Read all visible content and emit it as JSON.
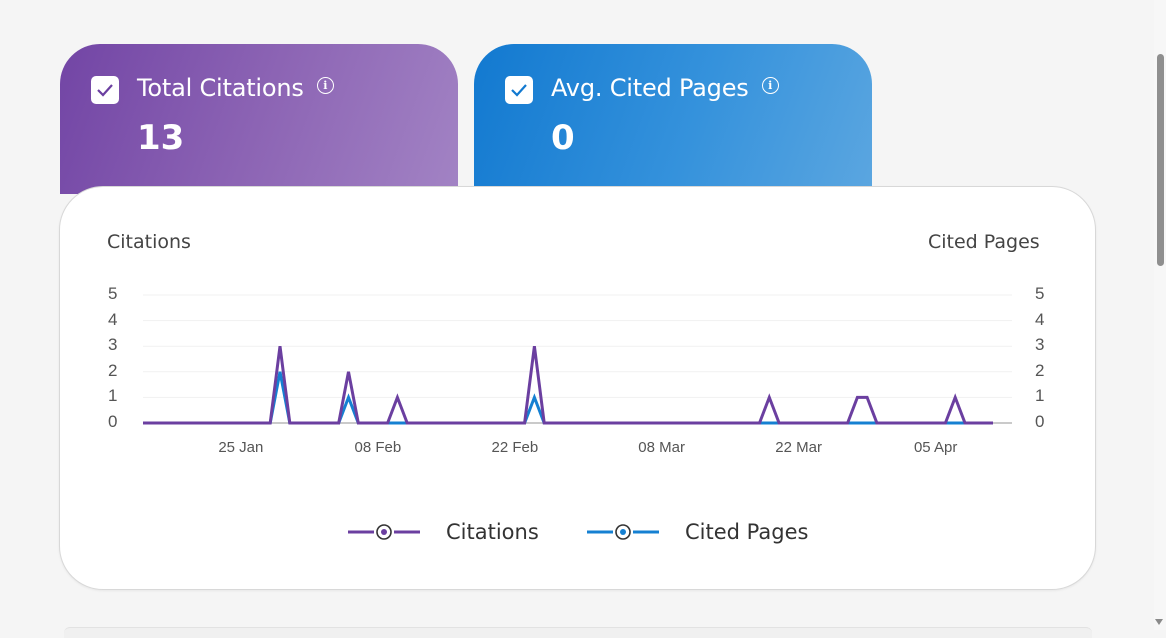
{
  "kpis": [
    {
      "label": "Total Citations",
      "value": "13",
      "checked": true,
      "color": "#7245a5",
      "icon": "info-icon"
    },
    {
      "label": "Avg. Cited Pages",
      "value": "0",
      "checked": true,
      "color": "#1279d0",
      "icon": "info-icon"
    }
  ],
  "chart": {
    "left_axis_title": "Citations",
    "right_axis_title": "Cited Pages",
    "y_ticks": [
      "5",
      "4",
      "3",
      "2",
      "1",
      "0"
    ],
    "x_ticks": [
      "25 Jan",
      "08 Feb",
      "22 Feb",
      "08 Mar",
      "22 Mar",
      "05 Apr"
    ],
    "legend": [
      {
        "label": "Citations",
        "color": "#6b3fa0"
      },
      {
        "label": "Cited Pages",
        "color": "#1580d2"
      }
    ]
  },
  "chart_data": {
    "type": "line",
    "title": "",
    "xlabel": "",
    "ylabel": "Citations",
    "ylabel_right": "Cited Pages",
    "ylim": [
      0,
      5
    ],
    "grid": true,
    "legend_position": "bottom",
    "x_tick_labels": [
      "25 Jan",
      "08 Feb",
      "22 Feb",
      "08 Mar",
      "22 Mar",
      "05 Apr"
    ],
    "x": [
      "15 Jan",
      "28 Jan",
      "29 Jan",
      "30 Jan",
      "04 Feb",
      "05 Feb",
      "06 Feb",
      "09 Feb",
      "10 Feb",
      "11 Feb",
      "23 Feb",
      "24 Feb",
      "25 Feb",
      "18 Mar",
      "19 Mar",
      "20 Mar",
      "27 Mar",
      "28 Mar",
      "29 Mar",
      "30 Mar",
      "06 Apr",
      "07 Apr",
      "08 Apr",
      "10 Apr"
    ],
    "series": [
      {
        "name": "Citations",
        "color": "#6b3fa0",
        "axis": "left",
        "values": [
          0,
          0,
          3,
          0,
          0,
          2,
          0,
          0,
          1,
          0,
          0,
          3,
          0,
          0,
          1,
          0,
          0,
          1,
          1,
          0,
          0,
          1,
          0,
          0
        ]
      },
      {
        "name": "Cited Pages",
        "color": "#1580d2",
        "axis": "right",
        "values": [
          0,
          0,
          2,
          0,
          0,
          1,
          0,
          0,
          0,
          0,
          0,
          1,
          0,
          0,
          0,
          0,
          0,
          0,
          0,
          0,
          0,
          0,
          0,
          0
        ]
      }
    ]
  }
}
